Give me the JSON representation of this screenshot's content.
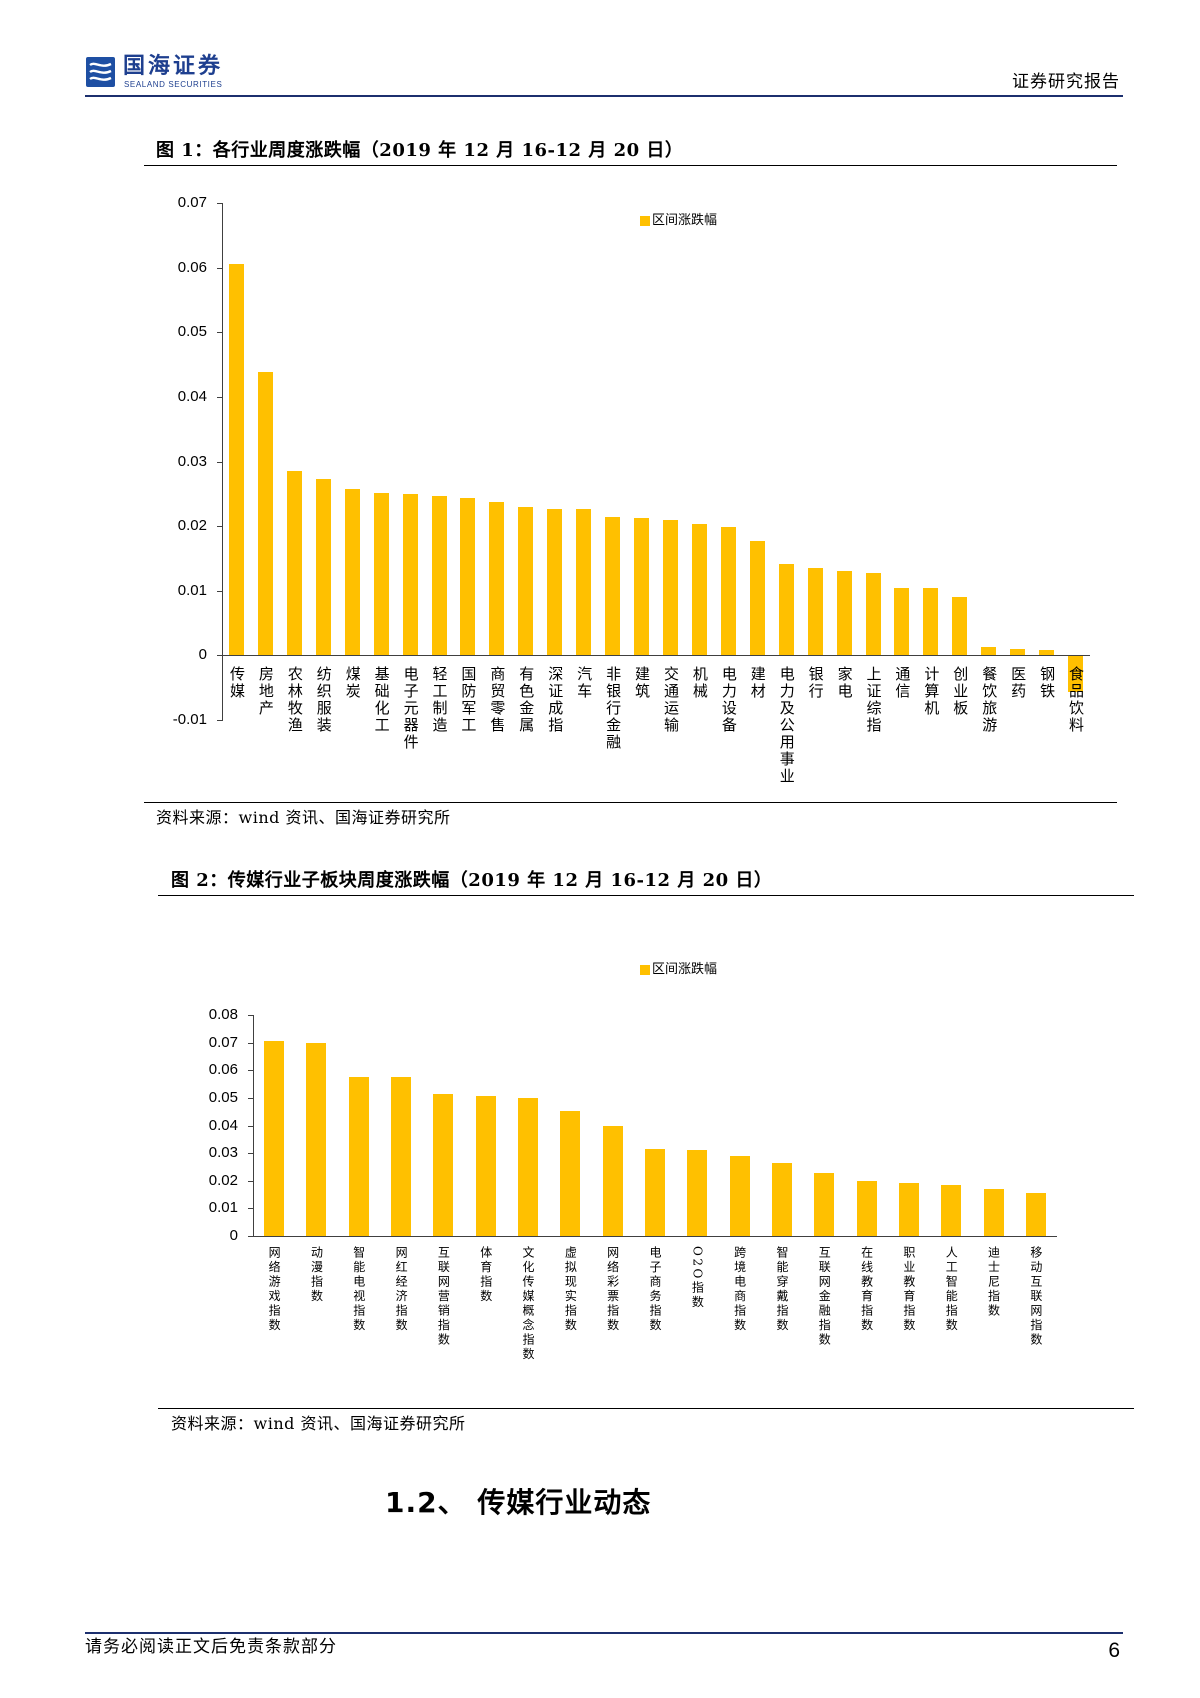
{
  "header": {
    "brand_cn": "国海证券",
    "brand_en": "SEALAND SECURITIES",
    "report_type": "证券研究报告"
  },
  "icons": {
    "logo": "sealand-logo-icon"
  },
  "colors": {
    "bar": "#FFC000",
    "brand": "#1E3F8F",
    "divider": "#1C2F6E",
    "axis": "#404040"
  },
  "chart_data": [
    {
      "type": "bar",
      "title": "图 1：各行业周度涨跌幅（2019 年 12 月 16-12 月 20 日）",
      "categories": [
        "传媒",
        "房地产",
        "农林牧渔",
        "纺织服装",
        "煤炭",
        "基础化工",
        "电子元器件",
        "轻工制造",
        "国防军工",
        "商贸零售",
        "有色金属",
        "深证成指",
        "汽车",
        "非银行金融",
        "建筑",
        "交通运输",
        "机械",
        "电力设备",
        "建材",
        "电力及公用事业",
        "银行",
        "家电",
        "上证综指",
        "通信",
        "计算机",
        "创业板",
        "餐饮旅游",
        "医药",
        "钢铁",
        "食品饮料"
      ],
      "series": [
        {
          "name": "区间涨跌幅",
          "values": [
            0.0605,
            0.0439,
            0.0285,
            0.0273,
            0.0258,
            0.0251,
            0.0249,
            0.0247,
            0.0244,
            0.0237,
            0.0229,
            0.0227,
            0.0226,
            0.0214,
            0.0212,
            0.0209,
            0.0204,
            0.0199,
            0.0177,
            0.0141,
            0.0135,
            0.013,
            0.0128,
            0.0105,
            0.0104,
            0.0091,
            0.0013,
            0.001,
            0.0008,
            -0.0057
          ]
        }
      ],
      "ylim": [
        -0.01,
        0.07
      ],
      "yticks": [
        "0.07",
        "0.06",
        "0.05",
        "0.04",
        "0.03",
        "0.02",
        "0.01",
        "0",
        "-0.01"
      ],
      "legend_position": "top-center",
      "source": "资料来源：wind 资讯、国海证券研究所"
    },
    {
      "type": "bar",
      "title": "图 2：传媒行业子板块周度涨跌幅（2019 年 12 月 16-12 月 20 日）",
      "categories": [
        "网络游戏指数",
        "动漫指数",
        "智能电视指数",
        "网红经济指数",
        "互联网营销指数",
        "体育指数",
        "文化传媒概念指数",
        "虚拟现实指数",
        "网络彩票指数",
        "电子商务指数",
        "O2O指数",
        "跨境电商指数",
        "智能穿戴指数",
        "互联网金融指数",
        "在线教育指数",
        "职业教育指数",
        "人工智能指数",
        "迪士尼指数",
        "移动互联网指数"
      ],
      "series": [
        {
          "name": "区间涨跌幅",
          "values": [
            0.0705,
            0.0697,
            0.0575,
            0.0575,
            0.0515,
            0.0507,
            0.0499,
            0.0453,
            0.0397,
            0.0316,
            0.031,
            0.0291,
            0.0264,
            0.0229,
            0.02,
            0.0191,
            0.0183,
            0.0169,
            0.0157
          ]
        }
      ],
      "ylim": [
        0,
        0.08
      ],
      "yticks": [
        "0.08",
        "0.07",
        "0.06",
        "0.05",
        "0.04",
        "0.03",
        "0.02",
        "0.01",
        "0"
      ],
      "legend_position": "top-center",
      "source": "资料来源：wind 资讯、国海证券研究所"
    }
  ],
  "section": {
    "heading": "1.2、 传媒行业动态"
  },
  "footer": {
    "note": "请务必阅读正文后免责条款部分",
    "page_number": "6"
  }
}
